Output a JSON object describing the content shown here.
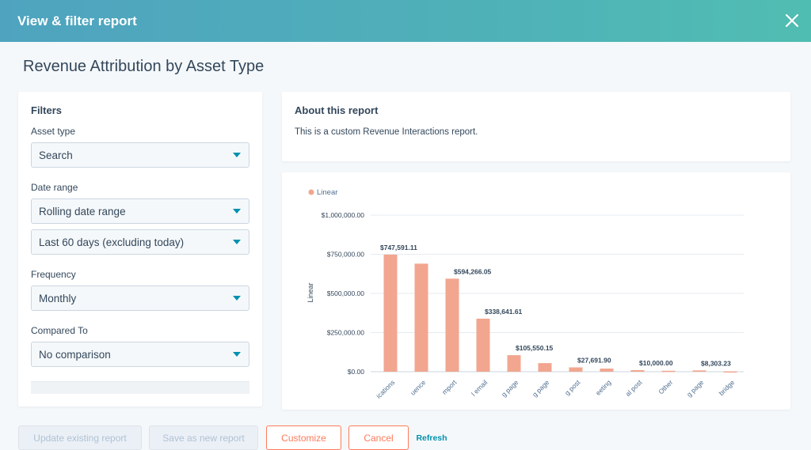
{
  "header": {
    "title": "View & filter report"
  },
  "page": {
    "title": "Revenue Attribution by Asset Type"
  },
  "filters": {
    "heading": "Filters",
    "asset_type": {
      "label": "Asset type",
      "value": "Search"
    },
    "date_range": {
      "label": "Date range",
      "value": "Rolling date range",
      "period": "Last 60 days (excluding today)"
    },
    "frequency": {
      "label": "Frequency",
      "value": "Monthly"
    },
    "compared_to": {
      "label": "Compared To",
      "value": "No comparison"
    }
  },
  "about": {
    "heading": "About this report",
    "text": "This is a custom Revenue Interactions report."
  },
  "chart_data": {
    "type": "bar",
    "legend": [
      "Linear"
    ],
    "legend_position": "top-left",
    "ylabel": "Linear",
    "ylim": [
      0,
      1000000
    ],
    "yticks": [
      "$0.00",
      "$250,000.00",
      "$500,000.00",
      "$750,000.00",
      "$1,000,000.00"
    ],
    "color": "#f2a68f",
    "categories": [
      "ications",
      "uence",
      "mport",
      "l email",
      "g page",
      "g page",
      "g post",
      "eeting",
      "al post",
      "Other",
      "g page",
      "bridge"
    ],
    "values": [
      747591.11,
      690000,
      594266.05,
      338641.61,
      105550.15,
      55000,
      27691.9,
      20000,
      10000.0,
      6000,
      8303.23,
      2000
    ],
    "data_labels": [
      "$747,591.11",
      "",
      "$594,266.05",
      "$338,641.61",
      "$105,550.15",
      "",
      "$27,691.90",
      "",
      "$10,000.00",
      "",
      "$8,303.23",
      ""
    ],
    "grid": true
  },
  "footer": {
    "update_label": "Update existing report",
    "save_new_label": "Save as new report",
    "customize_label": "Customize",
    "cancel_label": "Cancel",
    "refresh_label": "Refresh"
  }
}
